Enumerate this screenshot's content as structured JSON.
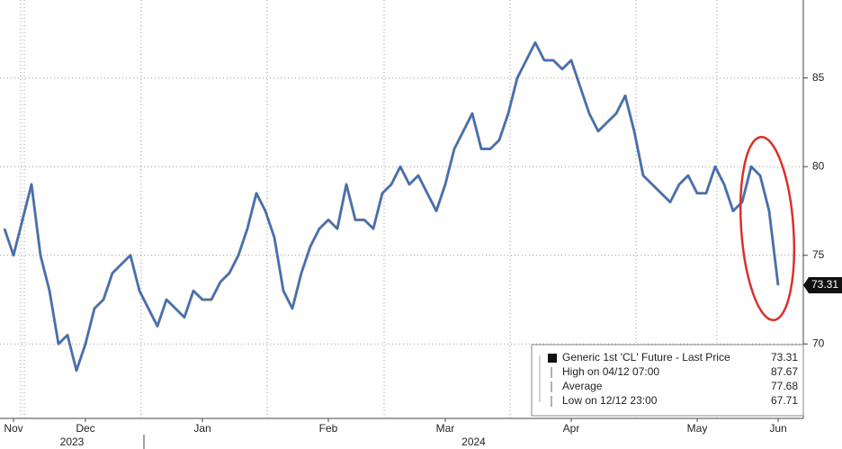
{
  "chart_data": {
    "type": "line",
    "categories": [
      null,
      "Nov",
      null,
      null,
      null,
      null,
      null,
      null,
      null,
      "Dec",
      null,
      null,
      null,
      null,
      null,
      null,
      null,
      null,
      null,
      null,
      null,
      null,
      "Jan",
      null,
      null,
      null,
      null,
      null,
      null,
      null,
      null,
      null,
      null,
      null,
      null,
      null,
      "Feb",
      null,
      null,
      null,
      null,
      null,
      null,
      null,
      null,
      null,
      null,
      null,
      null,
      "Mar",
      null,
      null,
      null,
      null,
      null,
      null,
      null,
      null,
      null,
      null,
      null,
      null,
      null,
      "Apr",
      null,
      null,
      null,
      null,
      null,
      null,
      null,
      null,
      null,
      null,
      null,
      null,
      null,
      "May",
      null,
      null,
      null,
      null,
      null,
      null,
      null,
      null,
      "Jun"
    ],
    "years": [
      {
        "label": "2023",
        "from": "Nov"
      },
      {
        "label": "2024",
        "from": "Jan"
      }
    ],
    "series": [
      {
        "name": "Generic 1st 'CL' Future - Last Price",
        "color": "#2f6fd1",
        "values": [
          76.5,
          75,
          77,
          79,
          75,
          73,
          70,
          70.5,
          68.5,
          70,
          72,
          72.5,
          74,
          74.5,
          75,
          73,
          72,
          71,
          72.5,
          72,
          71.5,
          73,
          72.5,
          72.5,
          73.5,
          74,
          75,
          76.5,
          78.5,
          77.5,
          76,
          73,
          72,
          74,
          75.5,
          76.5,
          77,
          76.5,
          79,
          77,
          77,
          76.5,
          78.5,
          79,
          80,
          79,
          79.5,
          78.5,
          77.5,
          79,
          81,
          82,
          83,
          81,
          81,
          81.5,
          83,
          85,
          86,
          87,
          86,
          86,
          85.5,
          86,
          84.5,
          83,
          82,
          82.5,
          83,
          84,
          82,
          79.5,
          79,
          78.5,
          78,
          79,
          79.5,
          78.5,
          78.5,
          80,
          79,
          77.5,
          78,
          80,
          79.5,
          77.5,
          73.31
        ]
      }
    ],
    "stats": [
      {
        "label": "High on 04/12 07:00",
        "value": 87.67
      },
      {
        "label": "Average",
        "value": 77.68
      },
      {
        "label": "Low on 12/12 23:00",
        "value": 67.71
      }
    ],
    "ylim": [
      65.8,
      89.4
    ],
    "yticks": [
      70,
      75,
      80,
      85
    ],
    "grid": true
  }
}
